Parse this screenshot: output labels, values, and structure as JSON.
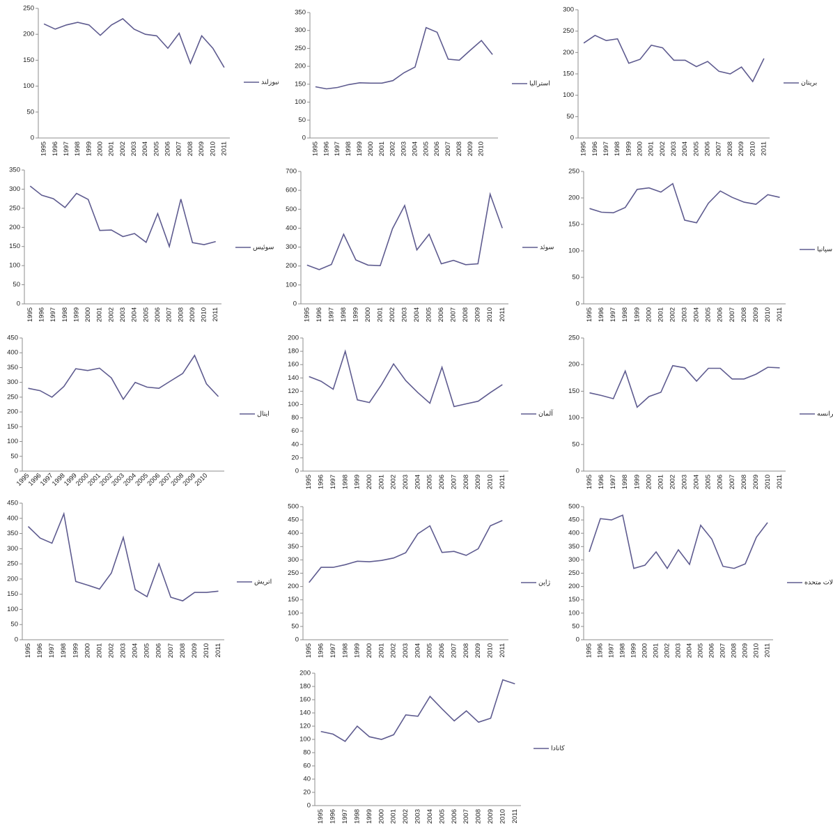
{
  "chart_data": [
    {
      "type": "line",
      "categories": [
        "1995",
        "1996",
        "1997",
        "1998",
        "1999",
        "2000",
        "2001",
        "2002",
        "2003",
        "2004",
        "2005",
        "2006",
        "2007",
        "2008",
        "2009",
        "2010",
        "2011"
      ],
      "series": [
        {
          "name": "نیوزلند",
          "color": "#5e5b8f",
          "values": [
            220,
            210,
            218,
            223,
            218,
            198,
            218,
            230,
            210,
            200,
            197,
            173,
            202,
            144,
            197,
            173,
            136
          ]
        }
      ],
      "ylim": [
        0,
        250
      ],
      "yticks": [
        0,
        50,
        100,
        150,
        200,
        250
      ]
    },
    {
      "type": "line",
      "categories": [
        "1995",
        "1996",
        "1997",
        "1998",
        "1999",
        "2000",
        "2001",
        "2002",
        "2003",
        "2004",
        "2005",
        "2006",
        "2007",
        "2008",
        "2009",
        "2010",
        null
      ],
      "series": [
        {
          "name": "استرالیا",
          "color": "#5e5b8f",
          "values": [
            143,
            137,
            141,
            149,
            154,
            153,
            153,
            160,
            182,
            198,
            308,
            295,
            220,
            217,
            245,
            272,
            233
          ]
        }
      ],
      "ylim": [
        0,
        350
      ],
      "yticks": [
        0,
        50,
        100,
        150,
        200,
        250,
        300,
        350
      ]
    },
    {
      "type": "line",
      "categories": [
        "1995",
        "1996",
        "1997",
        "1998",
        "1999",
        "2000",
        "2001",
        "2002",
        "2003",
        "2004",
        "2005",
        "2006",
        "2007",
        "2008",
        "2009",
        "2010",
        "2011"
      ],
      "series": [
        {
          "name": "بریتان",
          "color": "#5e5b8f",
          "values": [
            222,
            240,
            228,
            232,
            175,
            184,
            217,
            211,
            182,
            182,
            167,
            179,
            156,
            150,
            166,
            132,
            186
          ]
        }
      ],
      "ylim": [
        0,
        300
      ],
      "yticks": [
        0,
        50,
        100,
        150,
        200,
        250,
        300
      ]
    },
    {
      "type": "line",
      "categories": [
        "1995",
        "1996",
        "1997",
        "1998",
        "1999",
        "2000",
        "2001",
        "2002",
        "2003",
        "2004",
        "2005",
        "2006",
        "2007",
        "2008",
        "2009",
        "2010",
        "2011"
      ],
      "series": [
        {
          "name": "سوئیس",
          "color": "#5e5b8f",
          "values": [
            308,
            284,
            275,
            252,
            289,
            273,
            192,
            193,
            176,
            184,
            161,
            236,
            150,
            274,
            160,
            155,
            163
          ]
        }
      ],
      "ylim": [
        0,
        350
      ],
      "yticks": [
        0,
        50,
        100,
        150,
        200,
        250,
        300,
        350
      ]
    },
    {
      "type": "line",
      "categories": [
        "1995",
        "1996",
        "1997",
        "1998",
        "1999",
        "2000",
        "2001",
        "2002",
        "2003",
        "2004",
        "2005",
        "2006",
        "2007",
        "2008",
        "2009",
        "2010",
        "2011"
      ],
      "series": [
        {
          "name": "سوئد",
          "color": "#5e5b8f",
          "values": [
            205,
            181,
            208,
            368,
            232,
            205,
            202,
            397,
            520,
            285,
            368,
            212,
            230,
            207,
            212,
            580,
            400
          ]
        }
      ],
      "ylim": [
        0,
        700
      ],
      "yticks": [
        0,
        100,
        200,
        300,
        400,
        500,
        600,
        700
      ]
    },
    {
      "type": "line",
      "categories": [
        "1995",
        "1996",
        "1997",
        "1998",
        "1999",
        "2000",
        "2001",
        "2002",
        "2003",
        "2004",
        "2005",
        "2006",
        "2007",
        "2008",
        "2009",
        "2010",
        "2011"
      ],
      "series": [
        {
          "name": "اسپانیا",
          "color": "#5e5b8f",
          "values": [
            180,
            173,
            172,
            182,
            216,
            219,
            211,
            227,
            158,
            153,
            190,
            213,
            201,
            192,
            188,
            206,
            201
          ]
        }
      ],
      "ylim": [
        0,
        250
      ],
      "yticks": [
        0,
        50,
        100,
        150,
        200,
        250
      ]
    },
    {
      "type": "line",
      "categories": [
        "1995",
        "1996",
        "1997",
        "1998",
        "1999",
        "2000",
        "2001",
        "2002",
        "2003",
        "2004",
        "2005",
        "2006",
        "2007",
        "2008",
        "2009",
        "2010",
        null
      ],
      "series": [
        {
          "name": "ایتال",
          "color": "#5e5b8f",
          "values": [
            280,
            272,
            250,
            286,
            346,
            340,
            348,
            315,
            243,
            300,
            284,
            280,
            305,
            330,
            391,
            295,
            252
          ]
        }
      ],
      "ylim": [
        0,
        450
      ],
      "yticks": [
        0,
        50,
        100,
        150,
        200,
        250,
        300,
        350,
        400,
        450
      ]
    },
    {
      "type": "line",
      "categories": [
        "1995",
        "1996",
        "1997",
        "1998",
        "1999",
        "2000",
        "2001",
        "2002",
        "2003",
        "2004",
        "2005",
        "2006",
        "2007",
        "2008",
        "2009",
        "2010",
        "2011"
      ],
      "series": [
        {
          "name": "آلمان",
          "color": "#5e5b8f",
          "values": [
            142,
            135,
            123,
            180,
            107,
            103,
            130,
            161,
            136,
            118,
            102,
            156,
            97,
            101,
            105,
            118,
            130
          ]
        }
      ],
      "ylim": [
        0,
        200
      ],
      "yticks": [
        0,
        20,
        40,
        60,
        80,
        100,
        120,
        140,
        160,
        180,
        200
      ]
    },
    {
      "type": "line",
      "categories": [
        "1995",
        "1996",
        "1997",
        "1998",
        "1999",
        "2000",
        "2001",
        "2002",
        "2003",
        "2004",
        "2005",
        "2006",
        "2007",
        "2008",
        "2009",
        "2010",
        "2011"
      ],
      "series": [
        {
          "name": "فرانسه",
          "color": "#5e5b8f",
          "values": [
            147,
            142,
            136,
            188,
            120,
            140,
            148,
            198,
            194,
            169,
            193,
            193,
            173,
            173,
            182,
            195,
            194
          ]
        }
      ],
      "ylim": [
        0,
        250
      ],
      "yticks": [
        0,
        50,
        100,
        150,
        200,
        250
      ]
    },
    {
      "type": "line",
      "categories": [
        "1995",
        "1996",
        "1997",
        "1998",
        "1999",
        "2000",
        "2001",
        "2002",
        "2003",
        "2004",
        "2005",
        "2006",
        "2007",
        "2008",
        "2009",
        "2010",
        "2011"
      ],
      "series": [
        {
          "name": "اتریش",
          "color": "#5e5b8f",
          "values": [
            373,
            335,
            318,
            415,
            192,
            180,
            167,
            220,
            337,
            165,
            142,
            250,
            140,
            128,
            156,
            156,
            160
          ]
        }
      ],
      "ylim": [
        0,
        450
      ],
      "yticks": [
        0,
        50,
        100,
        150,
        200,
        250,
        300,
        350,
        400,
        450
      ]
    },
    {
      "type": "line",
      "categories": [
        "1995",
        "1996",
        "1997",
        "1998",
        "1999",
        "2000",
        "2001",
        "2002",
        "2003",
        "2004",
        "2005",
        "2006",
        "2007",
        "2008",
        "2009",
        "2010",
        "2011"
      ],
      "series": [
        {
          "name": "ژاپن",
          "color": "#5e5b8f",
          "values": [
            215,
            272,
            272,
            282,
            295,
            293,
            298,
            307,
            327,
            398,
            428,
            328,
            332,
            317,
            342,
            428,
            448
          ]
        }
      ],
      "ylim": [
        0,
        500
      ],
      "yticks": [
        0,
        50,
        100,
        150,
        200,
        250,
        300,
        350,
        400,
        450,
        500
      ]
    },
    {
      "type": "line",
      "categories": [
        "1995",
        "1996",
        "1997",
        "1998",
        "1999",
        "2000",
        "2001",
        "2002",
        "2003",
        "2004",
        "2005",
        "2006",
        "2007",
        "2008",
        "2009",
        "2010",
        "2011"
      ],
      "series": [
        {
          "name": "ایالات متحده",
          "color": "#5e5b8f",
          "values": [
            330,
            455,
            450,
            468,
            268,
            280,
            330,
            268,
            338,
            283,
            430,
            378,
            276,
            268,
            285,
            385,
            440
          ]
        }
      ],
      "ylim": [
        0,
        500
      ],
      "yticks": [
        0,
        50,
        100,
        150,
        200,
        250,
        300,
        350,
        400,
        450,
        500
      ]
    },
    {
      "type": "line",
      "categories": [
        "1995",
        "1996",
        "1997",
        "1998",
        "1999",
        "2000",
        "2001",
        "2002",
        "2003",
        "2004",
        "2005",
        "2006",
        "2007",
        "2008",
        "2009",
        "2010",
        "2011"
      ],
      "series": [
        {
          "name": "کانادا",
          "color": "#5e5b8f",
          "values": [
            112,
            108,
            97,
            120,
            104,
            100,
            107,
            137,
            135,
            165,
            146,
            128,
            143,
            126,
            132,
            190,
            184
          ]
        }
      ],
      "ylim": [
        0,
        200
      ],
      "yticks": [
        0,
        20,
        40,
        60,
        80,
        100,
        120,
        140,
        160,
        180,
        200
      ]
    }
  ]
}
